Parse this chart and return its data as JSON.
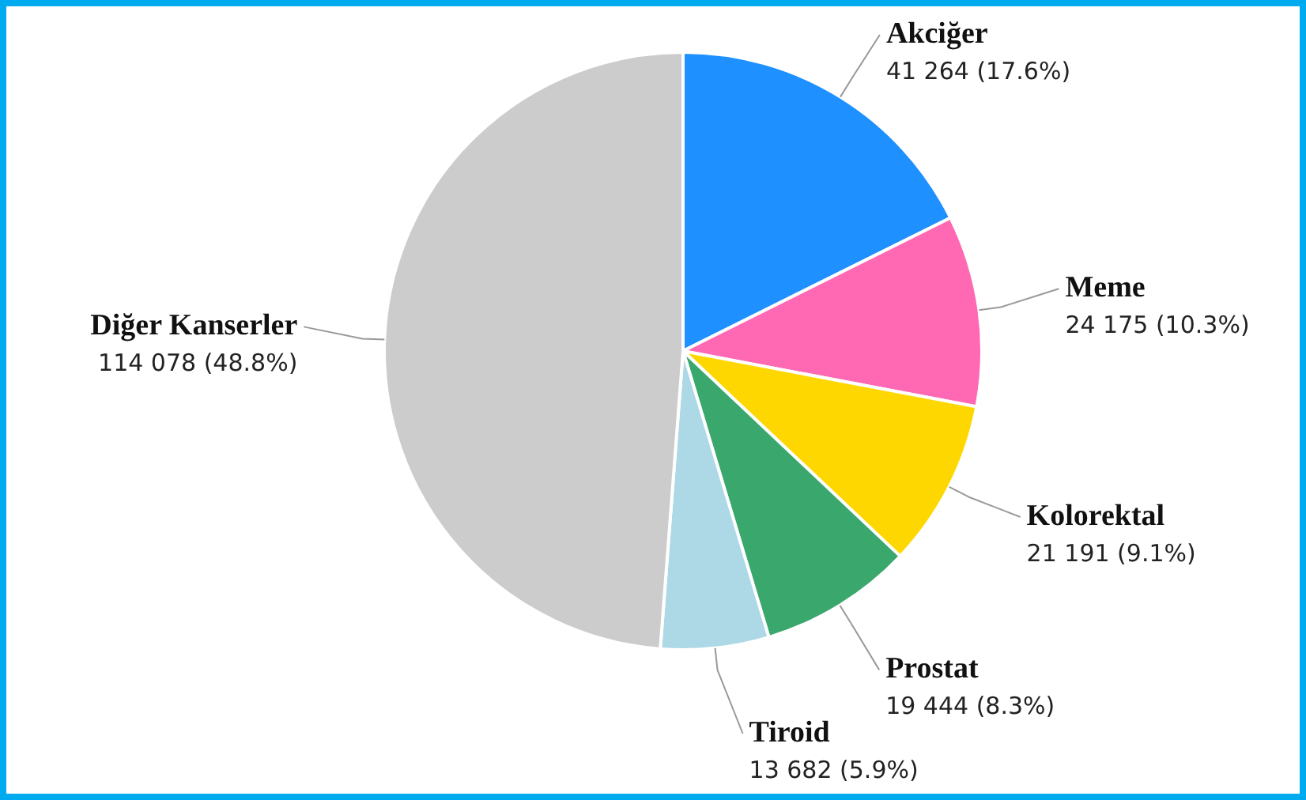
{
  "chart_data": {
    "type": "pie",
    "categories": [
      "Akciğer",
      "Meme",
      "Kolorektal",
      "Prostat",
      "Tiroid",
      "Diğer Kanserler"
    ],
    "values": [
      41264,
      24175,
      21191,
      19444,
      13682,
      114078
    ],
    "value_labels": [
      "41 264 (17.6%)",
      "24 175 (10.3%)",
      "21 191 (9.1%)",
      "19 444 (8.3%)",
      "13 682 (5.9%)",
      "114 078 (48.8%)"
    ],
    "colors": [
      "#1e90ff",
      "#ff69b4",
      "#ffd700",
      "#3aa76d",
      "#add8e6",
      "#cccccc"
    ],
    "legend": false
  }
}
